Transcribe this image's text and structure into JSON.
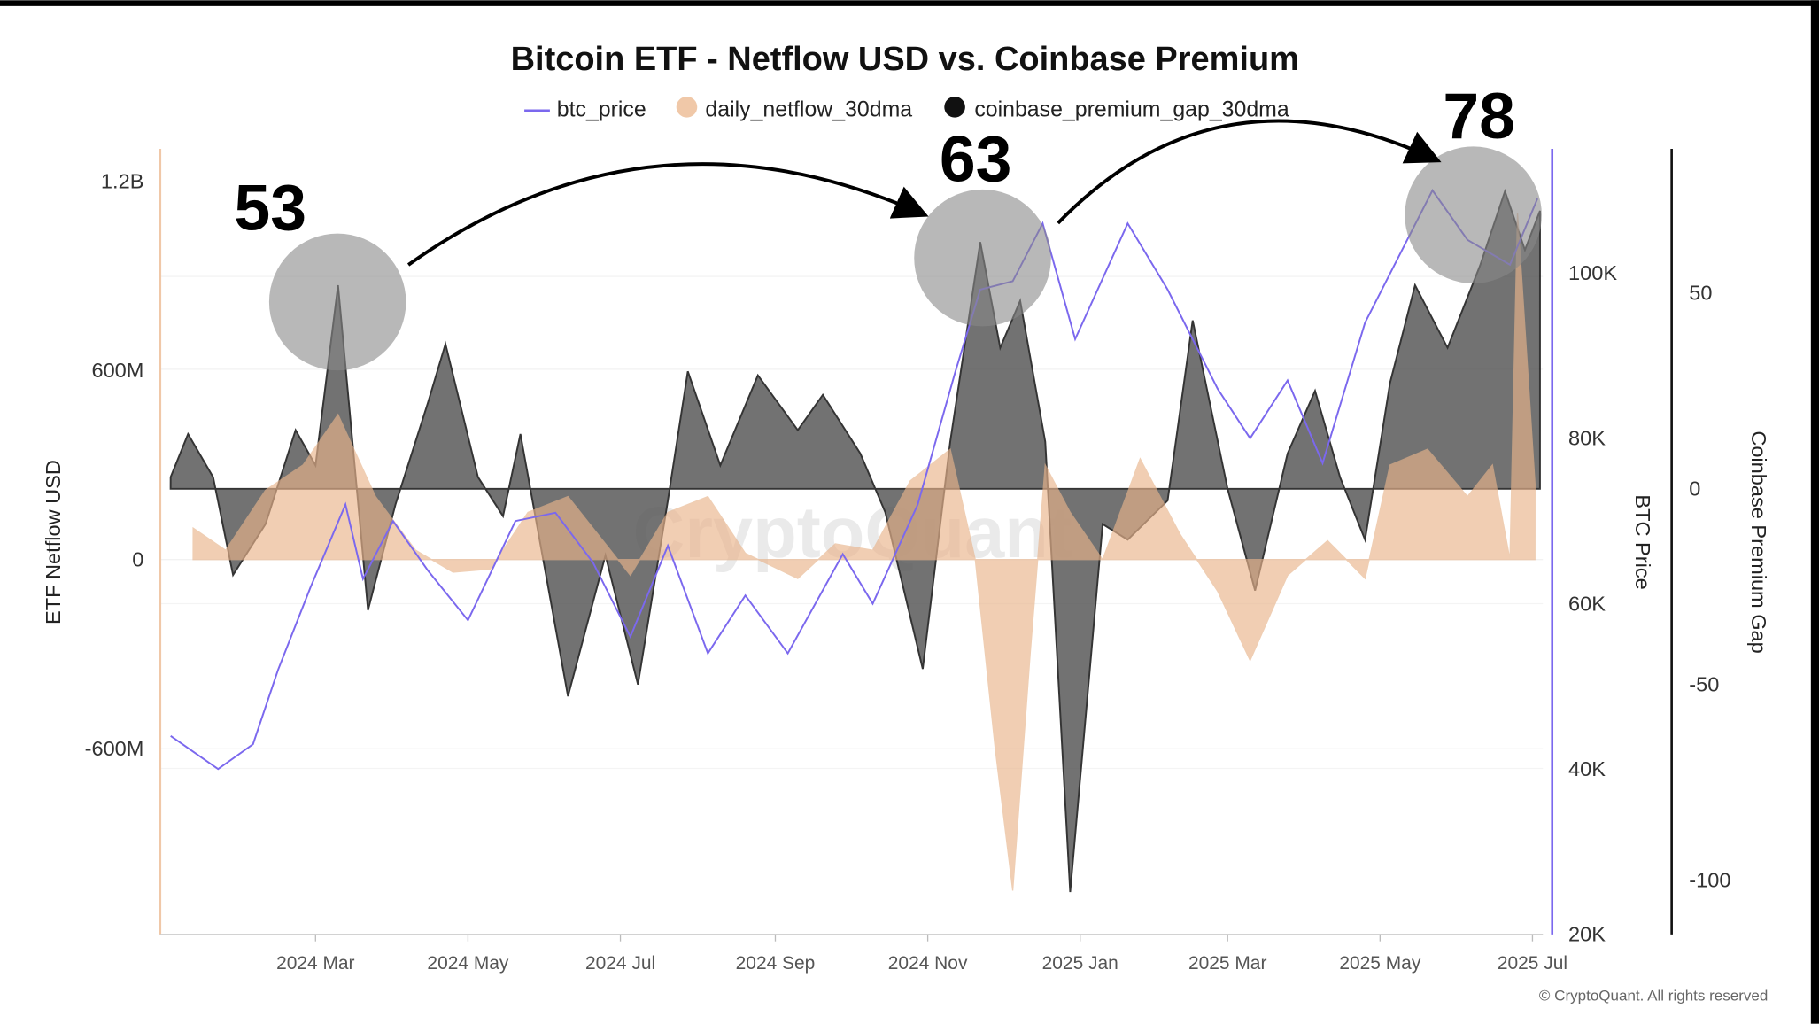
{
  "chart_data": {
    "type": "line",
    "title": "Bitcoin ETF - Netflow USD vs. Coinbase Premium",
    "legend": {
      "placement": "top-center",
      "entries": [
        "btc_price",
        "daily_netflow_30dma",
        "coinbase_premium_gap_30dma"
      ]
    },
    "x_ticks": [
      "2024 Mar",
      "2024 May",
      "2024 Jul",
      "2024 Sep",
      "2024 Nov",
      "2025 Jan",
      "2025 Mar",
      "2025 May",
      "2025 Jul"
    ],
    "x_tick_dates": [
      "2024-03-01",
      "2024-05-01",
      "2024-07-01",
      "2024-09-01",
      "2024-11-01",
      "2025-01-01",
      "2025-03-01",
      "2025-05-01",
      "2025-07-01"
    ],
    "x_range": [
      "2024-01-03",
      "2025-07-04"
    ],
    "axes": {
      "left": {
        "label": "ETF Netflow USD",
        "ticks": [
          "1.2B",
          "600M",
          "0",
          "-600M"
        ],
        "tick_values": [
          1200,
          600,
          0,
          -600
        ],
        "unit": "M USD",
        "color": "#f0c8a8"
      },
      "btc": {
        "label": "BTC Price",
        "ticks": [
          "100K",
          "80K",
          "60K",
          "40K",
          "20K"
        ],
        "tick_values": [
          100,
          80,
          60,
          40,
          20
        ],
        "unit": "K USD",
        "color": "#7b68ee"
      },
      "right": {
        "label": "Coinbase Premium Gap",
        "ticks": [
          "50",
          "0",
          "-50",
          "-100"
        ],
        "tick_values": [
          50,
          0,
          -50,
          -100
        ],
        "color": "#111111"
      }
    },
    "series": [
      {
        "name": "btc_price",
        "type": "line",
        "color": "#7b68ee",
        "axis": "btc",
        "points": [
          [
            "2024-01-03",
            44
          ],
          [
            "2024-01-22",
            40
          ],
          [
            "2024-02-05",
            43
          ],
          [
            "2024-02-15",
            52
          ],
          [
            "2024-02-28",
            62
          ],
          [
            "2024-03-13",
            72
          ],
          [
            "2024-03-20",
            63
          ],
          [
            "2024-04-01",
            70
          ],
          [
            "2024-04-15",
            64
          ],
          [
            "2024-05-01",
            58
          ],
          [
            "2024-05-20",
            70
          ],
          [
            "2024-06-05",
            71
          ],
          [
            "2024-06-20",
            65
          ],
          [
            "2024-07-05",
            56
          ],
          [
            "2024-07-20",
            67
          ],
          [
            "2024-08-05",
            54
          ],
          [
            "2024-08-20",
            61
          ],
          [
            "2024-09-06",
            54
          ],
          [
            "2024-09-28",
            66
          ],
          [
            "2024-10-10",
            60
          ],
          [
            "2024-10-28",
            72
          ],
          [
            "2024-11-12",
            88
          ],
          [
            "2024-11-22",
            98
          ],
          [
            "2024-12-05",
            99
          ],
          [
            "2024-12-17",
            106
          ],
          [
            "2024-12-30",
            92
          ],
          [
            "2025-01-20",
            106
          ],
          [
            "2025-02-05",
            98
          ],
          [
            "2025-02-25",
            86
          ],
          [
            "2025-03-10",
            80
          ],
          [
            "2025-03-25",
            87
          ],
          [
            "2025-04-08",
            77
          ],
          [
            "2025-04-25",
            94
          ],
          [
            "2025-05-22",
            110
          ],
          [
            "2025-06-05",
            104
          ],
          [
            "2025-06-22",
            101
          ],
          [
            "2025-07-03",
            109
          ]
        ]
      },
      {
        "name": "daily_netflow_30dma",
        "type": "area",
        "color": "#f0c8a8",
        "axis": "left",
        "points": [
          [
            "2024-01-12",
            100
          ],
          [
            "2024-01-25",
            30
          ],
          [
            "2024-02-10",
            220
          ],
          [
            "2024-02-25",
            300
          ],
          [
            "2024-03-10",
            460
          ],
          [
            "2024-03-25",
            200
          ],
          [
            "2024-04-10",
            30
          ],
          [
            "2024-04-25",
            -40
          ],
          [
            "2024-05-10",
            -30
          ],
          [
            "2024-05-25",
            150
          ],
          [
            "2024-06-10",
            200
          ],
          [
            "2024-06-25",
            50
          ],
          [
            "2024-07-05",
            -50
          ],
          [
            "2024-07-20",
            150
          ],
          [
            "2024-08-05",
            200
          ],
          [
            "2024-08-20",
            20
          ],
          [
            "2024-09-10",
            -60
          ],
          [
            "2024-09-25",
            50
          ],
          [
            "2024-10-10",
            30
          ],
          [
            "2024-10-25",
            250
          ],
          [
            "2024-11-10",
            350
          ],
          [
            "2024-11-20",
            0
          ],
          [
            "2024-11-28",
            -600
          ],
          [
            "2024-12-05",
            -1050
          ],
          [
            "2024-12-12",
            -300
          ],
          [
            "2024-12-18",
            300
          ],
          [
            "2024-12-28",
            150
          ],
          [
            "2025-01-10",
            0
          ],
          [
            "2025-01-25",
            320
          ],
          [
            "2025-02-10",
            80
          ],
          [
            "2025-02-25",
            -100
          ],
          [
            "2025-03-10",
            -320
          ],
          [
            "2025-03-25",
            -50
          ],
          [
            "2025-04-10",
            60
          ],
          [
            "2025-04-25",
            -60
          ],
          [
            "2025-05-05",
            300
          ],
          [
            "2025-05-20",
            350
          ],
          [
            "2025-06-05",
            200
          ],
          [
            "2025-06-15",
            300
          ],
          [
            "2025-06-22",
            0
          ],
          [
            "2025-06-25",
            1100
          ],
          [
            "2025-07-02",
            240
          ]
        ]
      },
      {
        "name": "coinbase_premium_gap_30dma",
        "type": "area",
        "color": "#555555",
        "axis": "right",
        "points": [
          [
            "2024-01-03",
            3
          ],
          [
            "2024-01-10",
            14
          ],
          [
            "2024-01-20",
            3
          ],
          [
            "2024-01-28",
            -22
          ],
          [
            "2024-02-10",
            -9
          ],
          [
            "2024-02-22",
            15
          ],
          [
            "2024-03-01",
            6
          ],
          [
            "2024-03-10",
            52
          ],
          [
            "2024-03-22",
            -31
          ],
          [
            "2024-04-02",
            -4
          ],
          [
            "2024-04-15",
            22
          ],
          [
            "2024-04-22",
            37
          ],
          [
            "2024-05-05",
            3
          ],
          [
            "2024-05-15",
            -7
          ],
          [
            "2024-05-22",
            14
          ],
          [
            "2024-06-10",
            -53
          ],
          [
            "2024-06-25",
            -17
          ],
          [
            "2024-07-08",
            -50
          ],
          [
            "2024-07-20",
            -3
          ],
          [
            "2024-07-28",
            30
          ],
          [
            "2024-08-10",
            6
          ],
          [
            "2024-08-25",
            29
          ],
          [
            "2024-09-10",
            15
          ],
          [
            "2024-09-20",
            24
          ],
          [
            "2024-10-05",
            9
          ],
          [
            "2024-10-15",
            -6
          ],
          [
            "2024-10-30",
            -46
          ],
          [
            "2024-11-10",
            12
          ],
          [
            "2024-11-22",
            63
          ],
          [
            "2024-11-30",
            36
          ],
          [
            "2024-12-08",
            48
          ],
          [
            "2024-12-18",
            12
          ],
          [
            "2024-12-28",
            -103
          ],
          [
            "2025-01-10",
            -9
          ],
          [
            "2025-01-20",
            -13
          ],
          [
            "2025-02-05",
            -3
          ],
          [
            "2025-02-15",
            43
          ],
          [
            "2025-03-01",
            0
          ],
          [
            "2025-03-12",
            -26
          ],
          [
            "2025-03-25",
            9
          ],
          [
            "2025-04-05",
            25
          ],
          [
            "2025-04-15",
            3
          ],
          [
            "2025-04-25",
            -13
          ],
          [
            "2025-05-05",
            27
          ],
          [
            "2025-05-15",
            52
          ],
          [
            "2025-05-28",
            36
          ],
          [
            "2025-06-10",
            57
          ],
          [
            "2025-06-20",
            76
          ],
          [
            "2025-06-28",
            61
          ],
          [
            "2025-07-04",
            71
          ]
        ]
      }
    ],
    "annotations": [
      {
        "label": "53",
        "date": "2024-03-10"
      },
      {
        "label": "63",
        "date": "2024-11-22"
      },
      {
        "label": "78",
        "date": "2025-06-20"
      }
    ],
    "watermark": "CryptoQuant",
    "copyright": "© CryptoQuant. All rights reserved"
  }
}
